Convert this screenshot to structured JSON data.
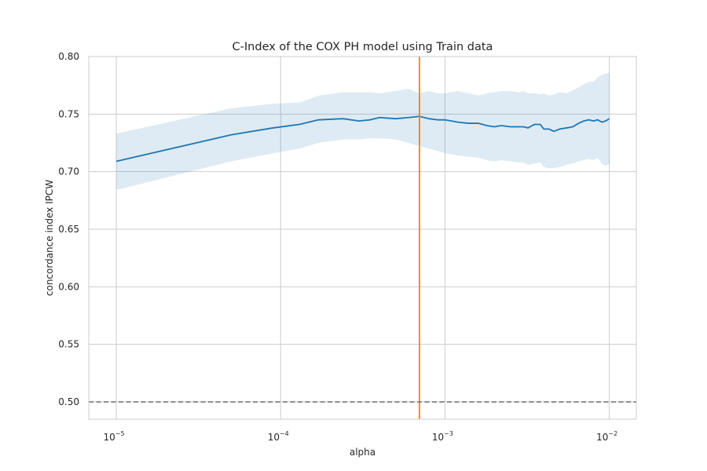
{
  "chart_data": {
    "type": "line",
    "title": "C-Index of the COX PH model using Train data",
    "xlabel": "alpha",
    "ylabel": "concordance index IPCW",
    "xscale": "log",
    "xlim": [
      6.8e-06,
      0.0146
    ],
    "ylim": [
      0.485,
      0.8
    ],
    "grid": true,
    "x_ticks": [
      {
        "value": 1e-05,
        "base": "10",
        "exponent": "−5"
      },
      {
        "value": 0.0001,
        "base": "10",
        "exponent": "−4"
      },
      {
        "value": 0.001,
        "base": "10",
        "exponent": "−3"
      },
      {
        "value": 0.01,
        "base": "10",
        "exponent": "−2"
      }
    ],
    "y_ticks": [
      {
        "value": 0.5,
        "label": "0.50"
      },
      {
        "value": 0.55,
        "label": "0.55"
      },
      {
        "value": 0.6,
        "label": "0.60"
      },
      {
        "value": 0.65,
        "label": "0.65"
      },
      {
        "value": 0.7,
        "label": "0.70"
      },
      {
        "value": 0.75,
        "label": "0.75"
      },
      {
        "value": 0.8,
        "label": "0.80"
      }
    ],
    "series": [
      {
        "color": "#1f77b4",
        "band_color": "#1f77b4",
        "x": [
          1e-05,
          5e-05,
          9e-05,
          0.00013,
          0.00017,
          0.00024,
          0.0003,
          0.00035,
          0.0004,
          0.0005,
          0.0006,
          0.0007,
          0.0008,
          0.0009,
          0.001,
          0.0012,
          0.0014,
          0.0016,
          0.0018,
          0.002,
          0.0022,
          0.0025,
          0.0028,
          0.003,
          0.0032,
          0.0035,
          0.0038,
          0.004,
          0.0043,
          0.0046,
          0.005,
          0.0055,
          0.006,
          0.0065,
          0.007,
          0.0075,
          0.008,
          0.0085,
          0.009,
          0.0095,
          0.01
        ],
        "y": [
          0.709,
          0.732,
          0.738,
          0.741,
          0.745,
          0.746,
          0.744,
          0.745,
          0.747,
          0.746,
          0.747,
          0.748,
          0.746,
          0.745,
          0.745,
          0.743,
          0.742,
          0.742,
          0.74,
          0.739,
          0.74,
          0.739,
          0.739,
          0.739,
          0.738,
          0.741,
          0.741,
          0.737,
          0.737,
          0.735,
          0.737,
          0.738,
          0.739,
          0.742,
          0.744,
          0.745,
          0.744,
          0.745,
          0.743,
          0.744,
          0.746
        ],
        "lower": [
          0.684,
          0.709,
          0.716,
          0.72,
          0.725,
          0.728,
          0.728,
          0.729,
          0.729,
          0.728,
          0.725,
          0.722,
          0.72,
          0.718,
          0.716,
          0.714,
          0.713,
          0.712,
          0.71,
          0.709,
          0.71,
          0.709,
          0.708,
          0.708,
          0.706,
          0.707,
          0.708,
          0.704,
          0.703,
          0.703,
          0.704,
          0.706,
          0.707,
          0.709,
          0.71,
          0.711,
          0.71,
          0.712,
          0.707,
          0.705,
          0.707
        ],
        "upper": [
          0.733,
          0.755,
          0.759,
          0.76,
          0.766,
          0.769,
          0.769,
          0.769,
          0.768,
          0.77,
          0.772,
          0.768,
          0.77,
          0.768,
          0.768,
          0.77,
          0.768,
          0.766,
          0.768,
          0.769,
          0.77,
          0.77,
          0.769,
          0.77,
          0.768,
          0.768,
          0.767,
          0.768,
          0.766,
          0.767,
          0.769,
          0.768,
          0.771,
          0.773,
          0.776,
          0.778,
          0.778,
          0.782,
          0.784,
          0.785,
          0.786
        ]
      }
    ],
    "reference_lines": [
      {
        "orientation": "vertical",
        "x": 0.0007,
        "color": "#ff7f0e",
        "style": "solid"
      },
      {
        "orientation": "horizontal",
        "y": 0.5,
        "color": "#808080",
        "style": "dashed"
      }
    ]
  }
}
